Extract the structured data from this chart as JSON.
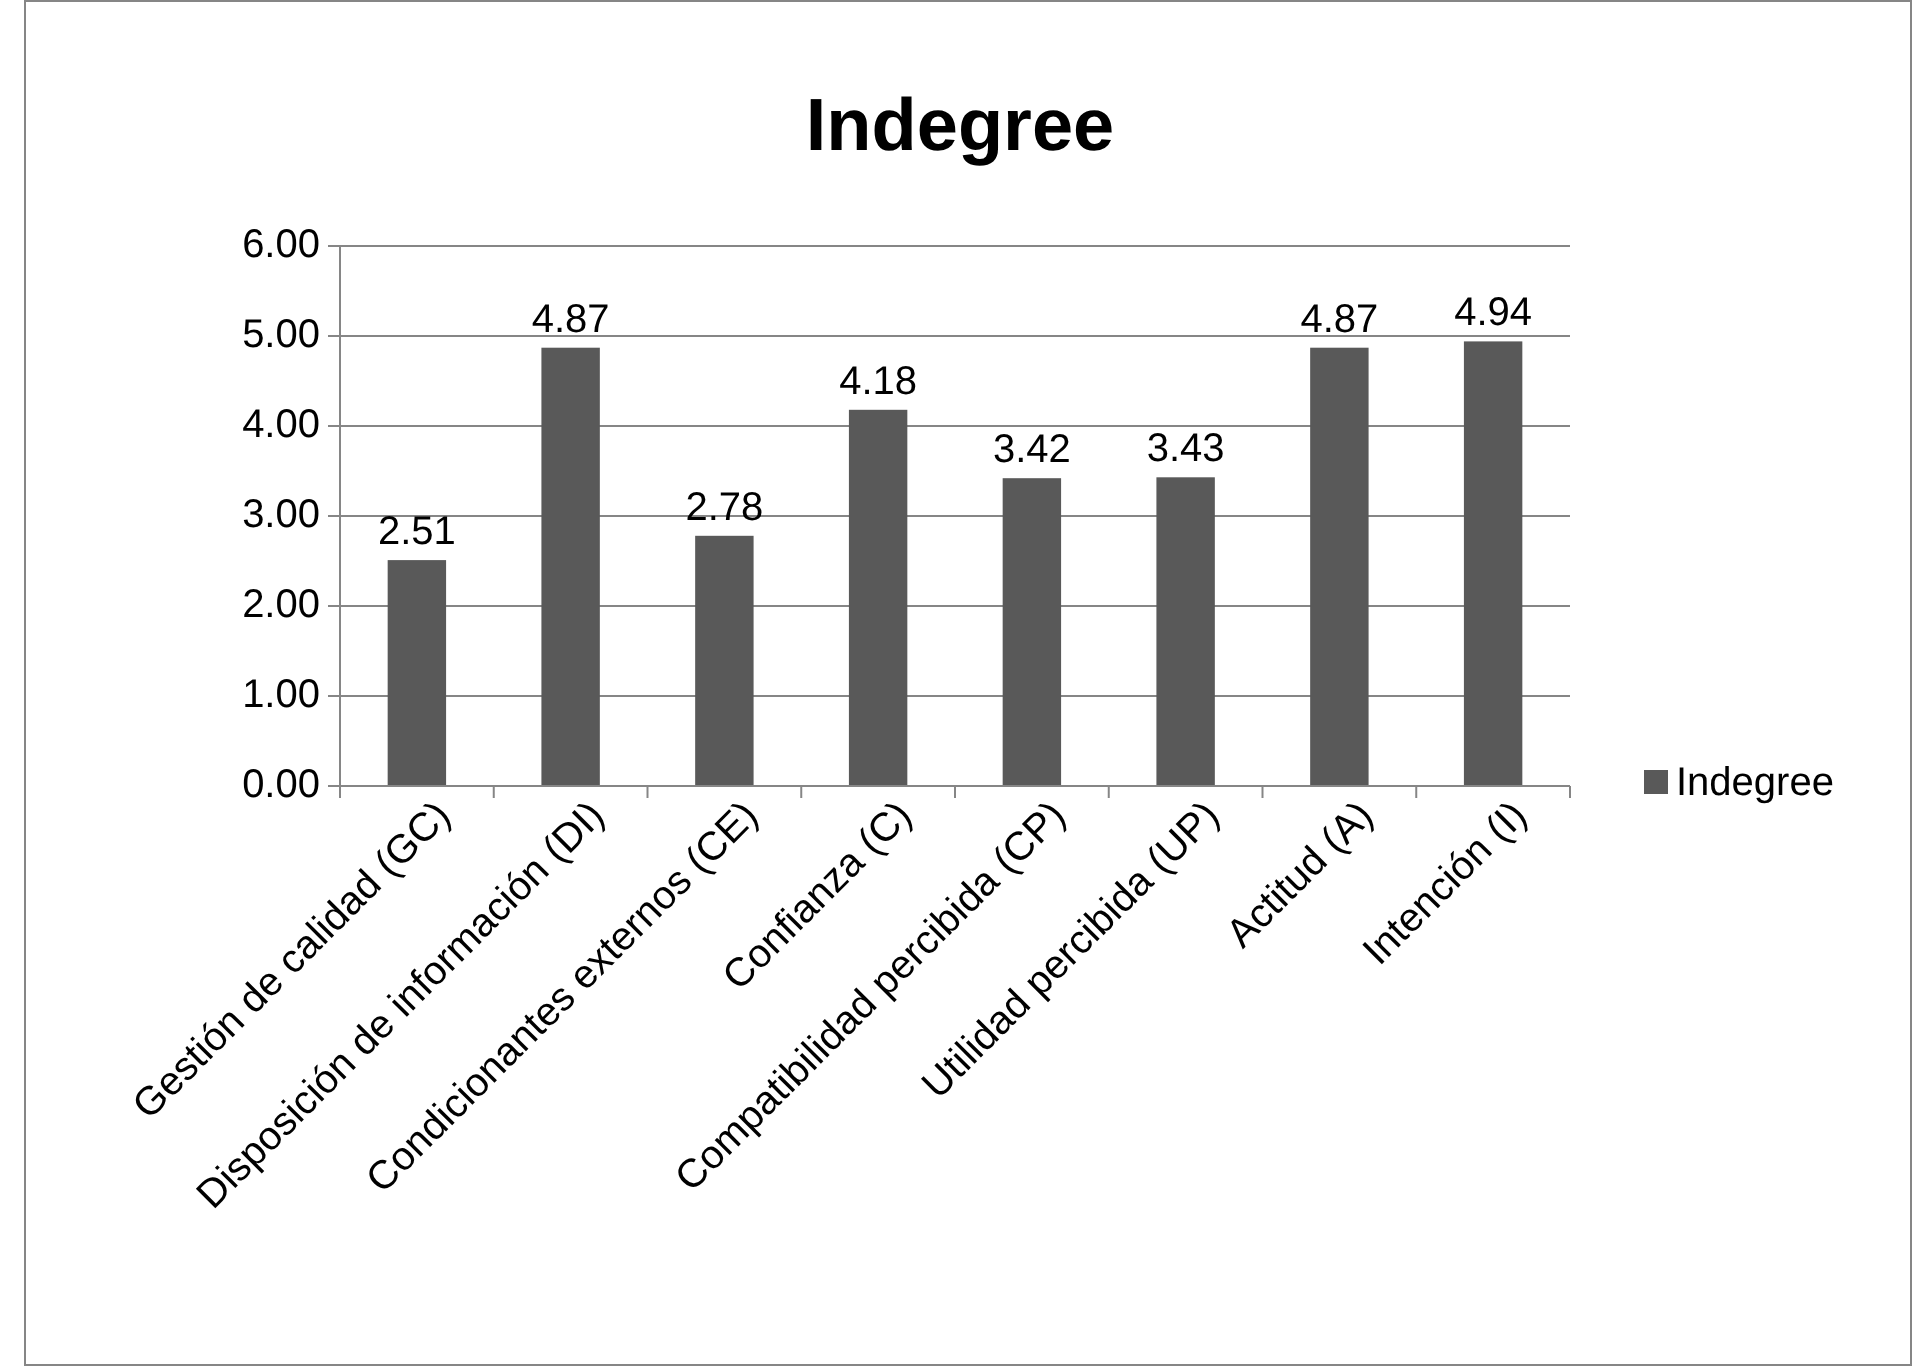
{
  "chart_data": {
    "type": "bar",
    "title": "Indegree",
    "categories": [
      "Gestión de calidad (GC)",
      "Disposición de información (DI)",
      "Condicionantes externos (CE)",
      "Confianza (C)",
      "Compatibilidad percibida (CP)",
      "Utilidad percibida (UP)",
      "Actitud (A)",
      "Intención (I)"
    ],
    "series": [
      {
        "name": "Indegree",
        "color": "#595959",
        "values": [
          2.51,
          4.87,
          2.78,
          4.18,
          3.42,
          3.43,
          4.87,
          4.94
        ]
      }
    ],
    "ylim": [
      0,
      6
    ],
    "yticks": [
      {
        "value": 0,
        "label": "0.00"
      },
      {
        "value": 1,
        "label": "1.00"
      },
      {
        "value": 2,
        "label": "2.00"
      },
      {
        "value": 3,
        "label": "3.00"
      },
      {
        "value": 4,
        "label": "4.00"
      },
      {
        "value": 5,
        "label": "5.00"
      },
      {
        "value": 6,
        "label": "6.00"
      }
    ],
    "grid": "y",
    "legend": "right",
    "data_labels": true
  }
}
